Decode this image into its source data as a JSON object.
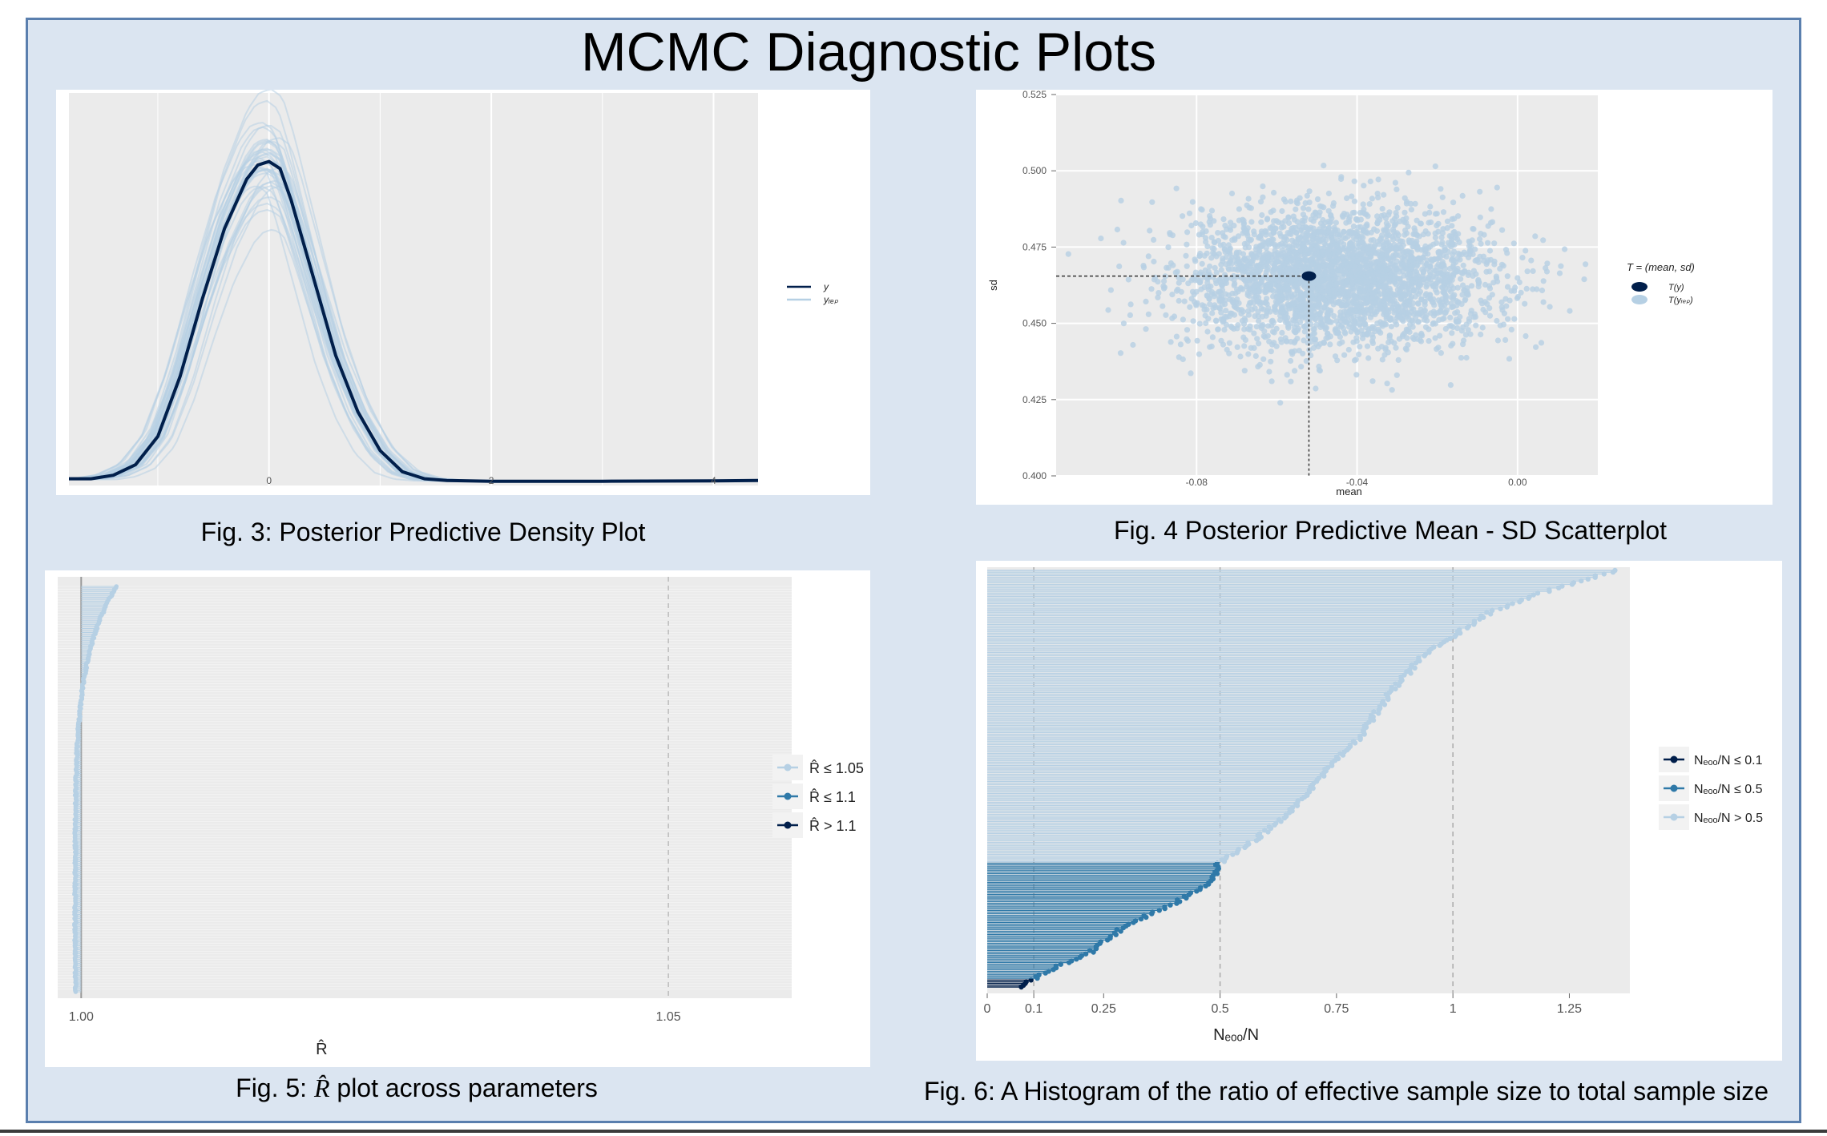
{
  "page_title": "MCMC Diagnostic Plots",
  "colors": {
    "background": "#dbe5f1",
    "border": "#5a7fae",
    "dark_blue": "#011f4b",
    "mid_blue": "#2f79a8",
    "light_blue": "#b6d0e4",
    "panel_grey": "#ebebeb"
  },
  "captions": {
    "fig3": "Fig. 3: Posterior Predictive Density Plot",
    "fig4": "Fig. 4 Posterior Predictive Mean - SD Scatterplot",
    "fig5_prefix": "Fig. 5: ",
    "fig5_symbol": "R̂",
    "fig5_suffix": " plot across parameters",
    "fig6": "Fig. 6: A Histogram of the ratio of effective sample size to total sample size"
  },
  "chart_data": [
    {
      "id": "fig3",
      "type": "line",
      "xlim": [
        -1.8,
        4.4
      ],
      "x_ticks": [
        "0",
        "2",
        "4"
      ],
      "x_tick_values": [
        0,
        2,
        4
      ],
      "legend": {
        "position": "right",
        "entries": [
          "y",
          "y_rep"
        ]
      },
      "series": [
        {
          "name": "y",
          "color": "#011f4b",
          "x": [
            -1.8,
            -1.6,
            -1.4,
            -1.2,
            -1.0,
            -0.8,
            -0.6,
            -0.4,
            -0.2,
            -0.1,
            0.0,
            0.1,
            0.2,
            0.4,
            0.6,
            0.8,
            1.0,
            1.2,
            1.4,
            1.6,
            2.0,
            3.0,
            4.0,
            4.4
          ],
          "y": [
            0.01,
            0.01,
            0.02,
            0.05,
            0.13,
            0.3,
            0.52,
            0.72,
            0.86,
            0.9,
            0.91,
            0.89,
            0.8,
            0.58,
            0.36,
            0.2,
            0.09,
            0.03,
            0.01,
            0.005,
            0.003,
            0.003,
            0.004,
            0.005
          ]
        },
        {
          "name": "y_rep",
          "color": "#b6d0e4",
          "note_shape": "overlaid replicated densities"
        }
      ]
    },
    {
      "id": "fig4",
      "type": "scatter",
      "xlabel": "mean",
      "ylabel": "sd",
      "xlim": [
        -0.115,
        0.02
      ],
      "ylim": [
        0.4,
        0.525
      ],
      "x_ticks": [
        "-0.08",
        "-0.04",
        "0.00"
      ],
      "x_tick_values": [
        -0.08,
        -0.04,
        0.0
      ],
      "y_ticks": [
        "0.400",
        "0.425",
        "0.450",
        "0.475",
        "0.500",
        "0.525"
      ],
      "y_tick_values": [
        0.4,
        0.425,
        0.45,
        0.475,
        0.5,
        0.525
      ],
      "legend": {
        "position": "right",
        "title": "T = (mean, sd)",
        "entries": [
          "T(y)",
          "T(y_rep)"
        ]
      },
      "observed_point": {
        "mean": -0.052,
        "sd": 0.4655
      },
      "replicated_cloud": {
        "center_mean": -0.045,
        "center_sd": 0.465,
        "spread_mean": 0.035,
        "spread_sd": 0.02
      }
    },
    {
      "id": "fig5",
      "type": "scatter",
      "xlabel": "R̂",
      "xlim": [
        0.998,
        1.0605
      ],
      "x_ticks": [
        "1.00",
        "1.05"
      ],
      "x_tick_values": [
        1.0,
        1.05
      ],
      "legend": {
        "position": "right",
        "entries": [
          "R̂ ≤ 1.05",
          "R̂ ≤ 1.1",
          "R̂ > 1.1"
        ]
      },
      "rhat_range": [
        0.9995,
        1.003
      ]
    },
    {
      "id": "fig6",
      "type": "bar",
      "xlabel": "Neff/N",
      "xlim": [
        0,
        1.38
      ],
      "x_ticks": [
        "0",
        "0.1",
        "0.25",
        "0.5",
        "0.75",
        "1",
        "1.25"
      ],
      "x_tick_values": [
        0,
        0.1,
        0.25,
        0.5,
        0.75,
        1.0,
        1.25
      ],
      "reference_lines": [
        0.1,
        0.5,
        1.0
      ],
      "legend": {
        "position": "right",
        "entries": [
          "Neff/N ≤ 0.1",
          "Neff/N ≤ 0.5",
          "Neff/N > 0.5"
        ]
      },
      "sorted_ratio_profile": {
        "fraction": [
          0.0,
          0.02,
          0.05,
          0.08,
          0.1,
          0.15,
          0.2,
          0.25,
          0.3,
          0.35,
          0.42,
          0.5,
          0.6,
          0.7,
          0.8,
          0.9,
          0.95,
          1.0
        ],
        "ratio": [
          0.07,
          0.1,
          0.15,
          0.22,
          0.24,
          0.3,
          0.4,
          0.48,
          0.5,
          0.57,
          0.65,
          0.71,
          0.8,
          0.86,
          0.94,
          1.08,
          1.2,
          1.35
        ]
      }
    }
  ]
}
